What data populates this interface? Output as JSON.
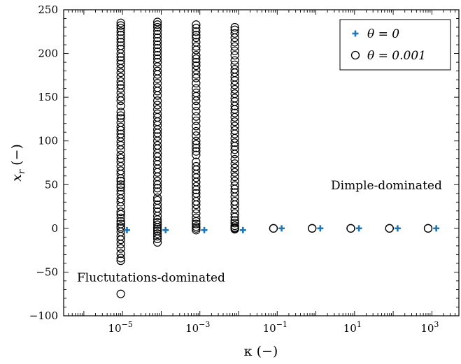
{
  "chart_data": {
    "type": "scatter",
    "xscale": "log",
    "xlim": [
      3e-07,
      5000
    ],
    "ylim": [
      -100,
      250
    ],
    "xlabel": "κ (−)",
    "ylabel": "x_r (−)",
    "ylabel_main": "x",
    "ylabel_sub": "r",
    "ylabel_unit": " (−)",
    "x_ticks": [
      {
        "value": 1e-05,
        "base": "10",
        "exp": "−5"
      },
      {
        "value": 0.001,
        "base": "10",
        "exp": "−3"
      },
      {
        "value": 0.1,
        "base": "10",
        "exp": "−1"
      },
      {
        "value": 10,
        "base": "10",
        "exp": "1"
      },
      {
        "value": 1000,
        "base": "10",
        "exp": "3"
      }
    ],
    "y_ticks": [
      {
        "value": -100,
        "label": "−100"
      },
      {
        "value": -50,
        "label": "−50"
      },
      {
        "value": 0,
        "label": "0"
      },
      {
        "value": 50,
        "label": "50"
      },
      {
        "value": 100,
        "label": "100"
      },
      {
        "value": 150,
        "label": "150"
      },
      {
        "value": 200,
        "label": "200"
      },
      {
        "value": 250,
        "label": "250"
      }
    ],
    "legend": {
      "placement": "top-right",
      "entries": [
        "θ = 0",
        "θ = 0.001"
      ]
    },
    "annotations": [
      {
        "text": "Dimple-dominated",
        "x": 30,
        "y": 48
      },
      {
        "text": "Fluctutations-dominated",
        "x": 0.00025,
        "y": -55
      }
    ],
    "series": [
      {
        "name": "θ = 0",
        "marker": "plus",
        "color": "#1f77b4",
        "x": [
          1.3e-05,
          0.00013,
          0.0013,
          0.013,
          0.13,
          1.3,
          13,
          130,
          1300
        ],
        "y": [
          -2,
          -2,
          -2,
          -2,
          0,
          0,
          0,
          0,
          0
        ]
      },
      {
        "name": "θ = 0.001",
        "marker": "circle",
        "color": "#000000",
        "columns": [
          {
            "x": 9e-06,
            "y": [
              235,
              232,
              229,
              225,
              221,
              217,
              213,
              209,
              205,
              200,
              196,
              192,
              188,
              183,
              178,
              173,
              168,
              164,
              160,
              155,
              150,
              146,
              140,
              133,
              129,
              126,
              121,
              116,
              112,
              108,
              104,
              99,
              95,
              90,
              84,
              80,
              76,
              71,
              66,
              62,
              57,
              54,
              50,
              47,
              43,
              39,
              34,
              30,
              25,
              19,
              16,
              12,
              8,
              5,
              2,
              0,
              -4,
              -9,
              -13,
              -18,
              -23,
              -29,
              -34,
              -37,
              -75
            ]
          },
          {
            "x": 8e-05,
            "y": [
              236,
              233,
              230,
              226,
              222,
              218,
              214,
              210,
              206,
              202,
              198,
              194,
              190,
              185,
              180,
              176,
              171,
              166,
              161,
              157,
              152,
              146,
              141,
              136,
              131,
              127,
              122,
              118,
              113,
              109,
              105,
              100,
              95,
              91,
              86,
              82,
              77,
              73,
              68,
              64,
              59,
              54,
              50,
              46,
              42,
              35,
              32,
              27,
              23,
              19,
              14,
              10,
              7,
              4,
              1,
              -1,
              -3,
              -6,
              -9,
              -12,
              -16
            ]
          },
          {
            "x": 0.0008,
            "y": [
              233,
              229,
              225,
              221,
              218,
              213,
              208,
              204,
              198,
              194,
              190,
              186,
              181,
              176,
              172,
              166,
              160,
              155,
              151,
              146,
              140,
              134,
              128,
              123,
              117,
              111,
              106,
              100,
              96,
              92,
              88,
              84,
              76,
              71,
              67,
              62,
              58,
              53,
              48,
              44,
              40,
              36,
              31,
              27,
              22,
              17,
              12,
              8,
              5,
              2,
              0,
              -2
            ]
          },
          {
            "x": 0.008,
            "y": [
              230,
              227,
              223,
              218,
              213,
              208,
              203,
              198,
              192,
              187,
              182,
              178,
              173,
              169,
              164,
              159,
              154,
              149,
              145,
              140,
              136,
              132,
              127,
              122,
              117,
              112,
              108,
              103,
              98,
              94,
              90,
              85,
              79,
              74,
              69,
              64,
              59,
              54,
              49,
              45,
              41,
              36,
              31,
              27,
              22,
              17,
              13,
              9,
              6,
              3,
              1,
              0,
              -1
            ]
          },
          {
            "x": 0.08,
            "y": [
              0,
              0,
              0
            ]
          },
          {
            "x": 0.8,
            "y": [
              0,
              0,
              0
            ]
          },
          {
            "x": 8,
            "y": [
              0,
              0,
              0
            ]
          },
          {
            "x": 80,
            "y": [
              0,
              0,
              0
            ]
          },
          {
            "x": 800,
            "y": [
              0,
              0,
              0
            ]
          }
        ]
      }
    ]
  }
}
